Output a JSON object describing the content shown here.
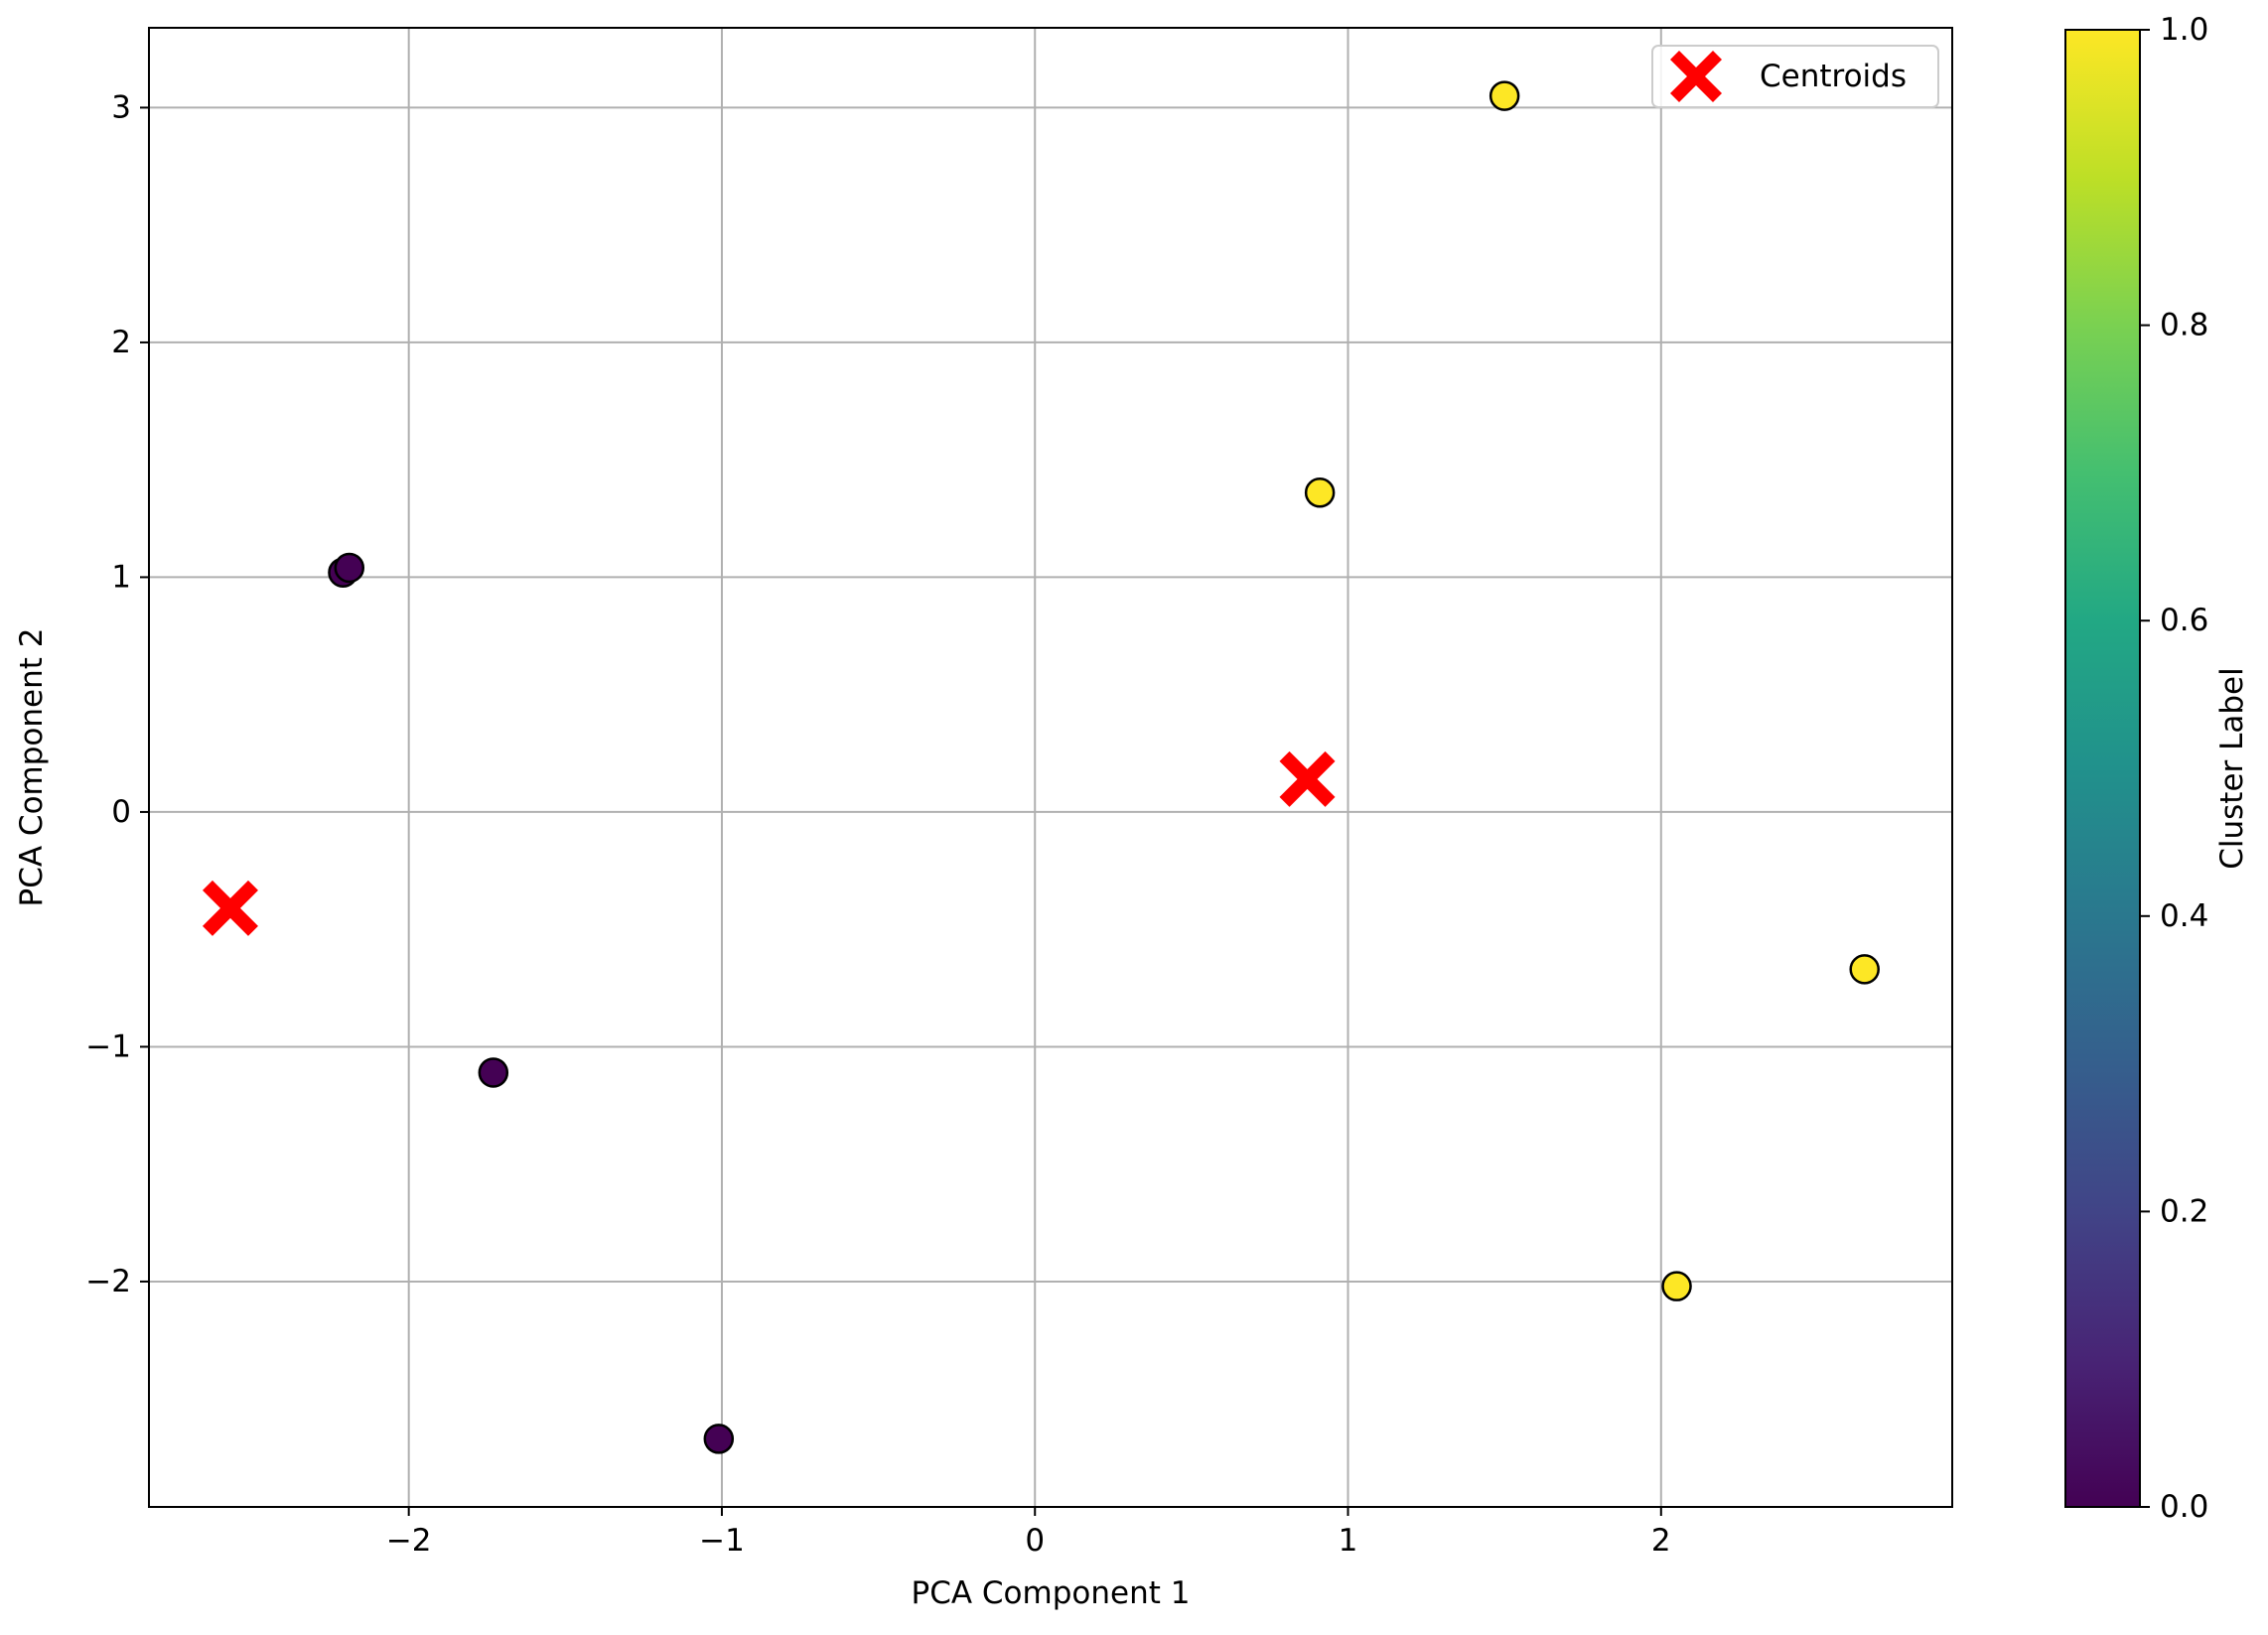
{
  "chart_data": {
    "type": "scatter",
    "xlabel": "PCA Component 1",
    "ylabel": "PCA Component 2",
    "xlim": [
      -2.83,
      2.93
    ],
    "ylim": [
      -2.96,
      3.34
    ],
    "xticks": [
      -2,
      -1,
      0,
      1,
      2
    ],
    "yticks": [
      -2,
      -1,
      0,
      1,
      2,
      3
    ],
    "grid": true,
    "legend": {
      "position": "top-right",
      "entries": [
        "Centroids"
      ]
    },
    "series": [
      {
        "kind": "points",
        "points": [
          {
            "x": -2.21,
            "y": 1.02,
            "cluster": 0
          },
          {
            "x": -2.19,
            "y": 1.04,
            "cluster": 0
          },
          {
            "x": -1.73,
            "y": -1.11,
            "cluster": 0
          },
          {
            "x": -1.01,
            "y": -2.67,
            "cluster": 0
          },
          {
            "x": 0.91,
            "y": 1.36,
            "cluster": 1
          },
          {
            "x": 1.5,
            "y": 3.05,
            "cluster": 1
          },
          {
            "x": 2.65,
            "y": -0.67,
            "cluster": 1
          },
          {
            "x": 2.05,
            "y": -2.02,
            "cluster": 1
          }
        ]
      },
      {
        "name": "Centroids",
        "kind": "centroids",
        "color": "#ff0000",
        "points": [
          {
            "x": -2.57,
            "y": -0.41
          },
          {
            "x": 0.87,
            "y": 0.14
          }
        ]
      }
    ],
    "colorbar": {
      "label": "Cluster Label",
      "colormap": "viridis",
      "range": [
        0.0,
        1.0
      ],
      "ticks": [
        "0.0",
        "0.2",
        "0.4",
        "0.6",
        "0.8",
        "1.0"
      ]
    },
    "colors": {
      "cluster_0": "#440154",
      "cluster_1": "#fde725",
      "grid": "#b0b0b0"
    }
  }
}
